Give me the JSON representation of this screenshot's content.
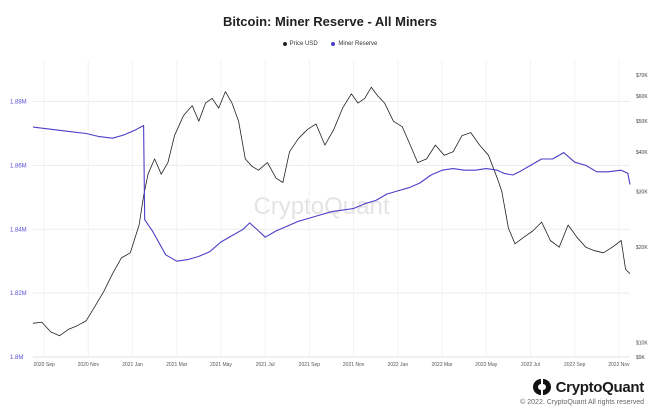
{
  "chart_data": {
    "type": "line",
    "title": "Bitcoin: Miner Reserve - All Miners",
    "legend": [
      "Price USD",
      "Miner Reserve"
    ],
    "watermark": "CryptoQuant",
    "x_ticks": [
      "2020 Sep",
      "2020 Nov",
      "2021 Jan",
      "2021 Mar",
      "2021 May",
      "2021 Jul",
      "2021 Sep",
      "2021 Nov",
      "2022 Jan",
      "2022 Mar",
      "2022 May",
      "2022 Jul",
      "2022 Sep",
      "2022 Nov"
    ],
    "x_range_months": [
      0,
      27
    ],
    "y_left": {
      "label": "Miner Reserve",
      "range": [
        1800000,
        1893000
      ],
      "ticks": [
        {
          "value": 1800000,
          "label": "1.8M"
        },
        {
          "value": 1820000,
          "label": "1.82M"
        },
        {
          "value": 1840000,
          "label": "1.84M"
        },
        {
          "value": 1860000,
          "label": "1.86M"
        },
        {
          "value": 1880000,
          "label": "1.88M"
        }
      ]
    },
    "y_right": {
      "label": "Price USD",
      "scale": "log",
      "range": [
        9000,
        78000
      ],
      "ticks": [
        {
          "value": 9000,
          "label": "$9K"
        },
        {
          "value": 10000,
          "label": "$10K"
        },
        {
          "value": 20000,
          "label": "$20K"
        },
        {
          "value": 30000,
          "label": "$30K"
        },
        {
          "value": 40000,
          "label": "$40K"
        },
        {
          "value": 50000,
          "label": "$50K"
        },
        {
          "value": 60000,
          "label": "$60K"
        },
        {
          "value": 70000,
          "label": "$70K"
        }
      ]
    },
    "series": [
      {
        "name": "Miner Reserve",
        "axis": "left",
        "color": "#4b3fc8",
        "points": [
          [
            0.0,
            1872000
          ],
          [
            0.6,
            1871500
          ],
          [
            1.2,
            1871000
          ],
          [
            1.8,
            1870500
          ],
          [
            2.4,
            1870000
          ],
          [
            3.0,
            1869000
          ],
          [
            3.6,
            1868500
          ],
          [
            4.1,
            1869500
          ],
          [
            4.6,
            1871000
          ],
          [
            5.0,
            1872500
          ],
          [
            5.05,
            1843000
          ],
          [
            5.4,
            1839500
          ],
          [
            6.0,
            1832000
          ],
          [
            6.5,
            1830000
          ],
          [
            7.0,
            1830500
          ],
          [
            7.5,
            1831500
          ],
          [
            8.0,
            1833000
          ],
          [
            8.5,
            1836000
          ],
          [
            9.0,
            1838000
          ],
          [
            9.5,
            1840000
          ],
          [
            9.8,
            1842000
          ],
          [
            10.2,
            1839500
          ],
          [
            10.5,
            1837500
          ],
          [
            11.0,
            1839500
          ],
          [
            11.5,
            1841000
          ],
          [
            12.0,
            1842500
          ],
          [
            12.5,
            1843500
          ],
          [
            13.0,
            1844500
          ],
          [
            13.5,
            1845500
          ],
          [
            14.0,
            1846000
          ],
          [
            14.5,
            1846500
          ],
          [
            15.0,
            1848000
          ],
          [
            15.5,
            1849000
          ],
          [
            16.0,
            1851000
          ],
          [
            16.5,
            1852000
          ],
          [
            17.0,
            1853000
          ],
          [
            17.5,
            1854500
          ],
          [
            18.0,
            1857000
          ],
          [
            18.5,
            1858500
          ],
          [
            19.0,
            1859000
          ],
          [
            19.5,
            1858500
          ],
          [
            20.0,
            1858500
          ],
          [
            20.5,
            1859000
          ],
          [
            21.0,
            1858500
          ],
          [
            21.3,
            1857500
          ],
          [
            21.7,
            1857000
          ],
          [
            22.0,
            1858000
          ],
          [
            22.5,
            1860000
          ],
          [
            23.0,
            1862000
          ],
          [
            23.5,
            1862000
          ],
          [
            24.0,
            1864000
          ],
          [
            24.5,
            1861000
          ],
          [
            25.0,
            1860000
          ],
          [
            25.5,
            1858000
          ],
          [
            26.0,
            1858000
          ],
          [
            26.6,
            1858500
          ],
          [
            26.9,
            1857500
          ],
          [
            27.0,
            1854000
          ]
        ]
      },
      {
        "name": "Price USD",
        "axis": "right",
        "color": "#222222",
        "points": [
          [
            0.0,
            11500
          ],
          [
            0.4,
            11600
          ],
          [
            0.8,
            10800
          ],
          [
            1.2,
            10500
          ],
          [
            1.6,
            11000
          ],
          [
            2.0,
            11300
          ],
          [
            2.4,
            11700
          ],
          [
            2.8,
            13000
          ],
          [
            3.2,
            14500
          ],
          [
            3.6,
            16500
          ],
          [
            4.0,
            18500
          ],
          [
            4.4,
            19200
          ],
          [
            4.8,
            23500
          ],
          [
            5.0,
            29000
          ],
          [
            5.2,
            34000
          ],
          [
            5.5,
            38000
          ],
          [
            5.8,
            34000
          ],
          [
            6.1,
            37000
          ],
          [
            6.4,
            45000
          ],
          [
            6.8,
            52000
          ],
          [
            7.2,
            56000
          ],
          [
            7.5,
            50000
          ],
          [
            7.8,
            57000
          ],
          [
            8.1,
            59000
          ],
          [
            8.4,
            55000
          ],
          [
            8.7,
            62000
          ],
          [
            9.0,
            57000
          ],
          [
            9.3,
            50000
          ],
          [
            9.6,
            38000
          ],
          [
            9.9,
            36000
          ],
          [
            10.2,
            35000
          ],
          [
            10.6,
            37000
          ],
          [
            11.0,
            33000
          ],
          [
            11.3,
            32000
          ],
          [
            11.6,
            40000
          ],
          [
            12.0,
            44000
          ],
          [
            12.4,
            47000
          ],
          [
            12.8,
            49000
          ],
          [
            13.2,
            42000
          ],
          [
            13.6,
            47000
          ],
          [
            14.0,
            55000
          ],
          [
            14.4,
            61000
          ],
          [
            14.7,
            57000
          ],
          [
            15.0,
            59000
          ],
          [
            15.3,
            64000
          ],
          [
            15.6,
            60000
          ],
          [
            15.9,
            57000
          ],
          [
            16.3,
            50000
          ],
          [
            16.7,
            48000
          ],
          [
            17.0,
            43000
          ],
          [
            17.4,
            37000
          ],
          [
            17.8,
            38000
          ],
          [
            18.2,
            42000
          ],
          [
            18.6,
            39000
          ],
          [
            19.0,
            40000
          ],
          [
            19.4,
            45000
          ],
          [
            19.8,
            46000
          ],
          [
            20.2,
            42000
          ],
          [
            20.6,
            39000
          ],
          [
            21.0,
            33000
          ],
          [
            21.2,
            30000
          ],
          [
            21.5,
            23000
          ],
          [
            21.8,
            20500
          ],
          [
            22.2,
            21500
          ],
          [
            22.6,
            22500
          ],
          [
            23.0,
            24000
          ],
          [
            23.4,
            21000
          ],
          [
            23.8,
            20000
          ],
          [
            24.2,
            23500
          ],
          [
            24.6,
            21500
          ],
          [
            25.0,
            20000
          ],
          [
            25.4,
            19500
          ],
          [
            25.8,
            19200
          ],
          [
            26.2,
            20000
          ],
          [
            26.6,
            21000
          ],
          [
            26.8,
            17000
          ],
          [
            27.0,
            16500
          ]
        ]
      }
    ]
  },
  "footer": {
    "brand": "CryptoQuant",
    "copyright": "© 2022. CryptoQuant All rights reserved"
  }
}
